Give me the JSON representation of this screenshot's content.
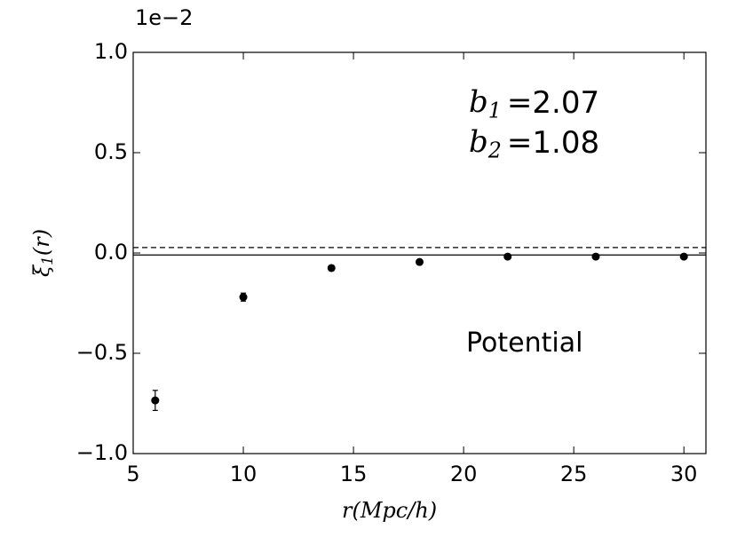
{
  "chart_data": {
    "type": "errorbar",
    "offset_text": "1e−2",
    "xlabel": {
      "symbol": "r",
      "text": "(Mpc/h)"
    },
    "ylabel": {
      "symbol": "ξ",
      "sub": "1",
      "text": "(r)"
    },
    "annotations": [
      {
        "symbol": "b",
        "sub": "1",
        "text": "=2.07"
      },
      {
        "symbol": "b",
        "sub": "2",
        "text": "=1.08"
      },
      {
        "text": "Potential"
      }
    ],
    "xlim": [
      5,
      31
    ],
    "ylim": [
      -1.0,
      1.0
    ],
    "xticks": [
      5,
      10,
      15,
      20,
      25,
      30
    ],
    "yticks": [
      {
        "value": -1.0,
        "label": "−1.0"
      },
      {
        "value": -0.5,
        "label": "−0.5"
      },
      {
        "value": 0.0,
        "label": "0.0"
      },
      {
        "value": 0.5,
        "label": "0.5"
      },
      {
        "value": 1.0,
        "label": "1.0"
      }
    ],
    "series": [
      {
        "color": "#000000",
        "x": [
          6,
          10,
          14,
          18,
          22,
          26,
          30
        ],
        "values": [
          -0.735,
          -0.22,
          -0.075,
          -0.045,
          -0.018,
          -0.018,
          -0.018
        ],
        "errors": [
          0.05,
          0.02,
          0.01,
          0.01,
          0.005,
          0.005,
          0.005
        ]
      }
    ],
    "hlines": [
      {
        "y": -0.01,
        "style": "solid",
        "color": "#000000"
      },
      {
        "y": 0.027,
        "style": "dashed",
        "color": "#000000"
      }
    ]
  }
}
